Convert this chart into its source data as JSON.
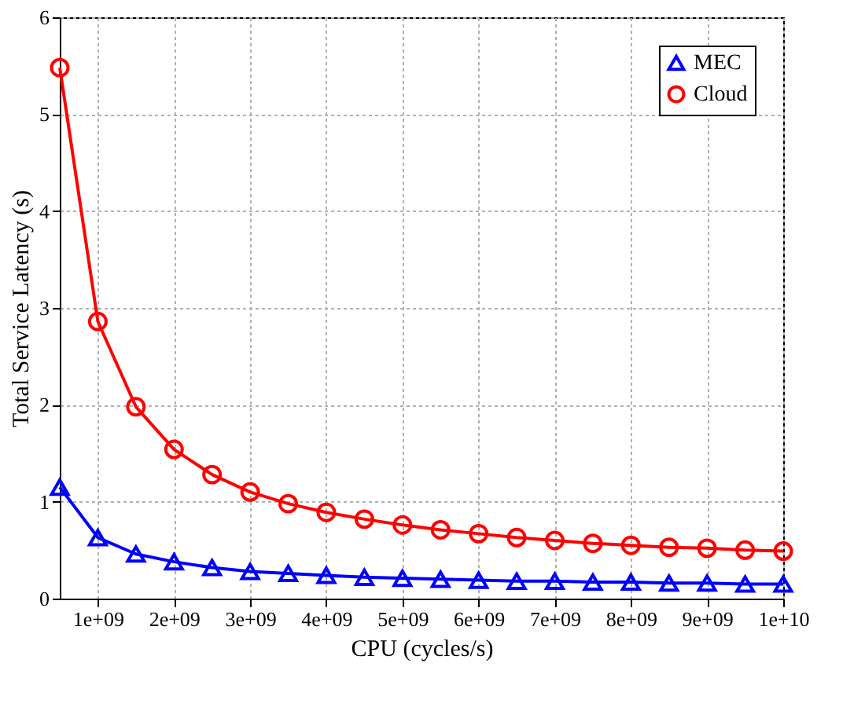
{
  "chart_data": {
    "type": "line",
    "xlabel": "CPU (cycles/s)",
    "ylabel": "Total Service Latency (s)",
    "x": [
      500000000,
      1000000000,
      1500000000,
      2000000000,
      2500000000,
      3000000000,
      3500000000,
      4000000000,
      4500000000,
      5000000000,
      5500000000,
      6000000000,
      6500000000,
      7000000000,
      7500000000,
      8000000000,
      8500000000,
      9000000000,
      9500000000,
      10000000000
    ],
    "series": [
      {
        "name": "MEC",
        "color": "#0000ff",
        "marker": "triangle",
        "values": [
          1.15,
          0.63,
          0.46,
          0.38,
          0.32,
          0.28,
          0.26,
          0.24,
          0.22,
          0.21,
          0.2,
          0.19,
          0.18,
          0.18,
          0.17,
          0.17,
          0.16,
          0.16,
          0.15,
          0.15
        ]
      },
      {
        "name": "Cloud",
        "color": "#ff0000",
        "marker": "circle",
        "values": [
          5.48,
          2.86,
          1.98,
          1.54,
          1.28,
          1.1,
          0.98,
          0.89,
          0.82,
          0.76,
          0.71,
          0.67,
          0.63,
          0.6,
          0.57,
          0.55,
          0.53,
          0.52,
          0.5,
          0.49
        ]
      }
    ],
    "xlim": [
      500000000,
      10000000000
    ],
    "xticks": [
      {
        "value": 1000000000,
        "label": "1e+09"
      },
      {
        "value": 2000000000,
        "label": "2e+09"
      },
      {
        "value": 3000000000,
        "label": "3e+09"
      },
      {
        "value": 4000000000,
        "label": "4e+09"
      },
      {
        "value": 5000000000,
        "label": "5e+09"
      },
      {
        "value": 6000000000,
        "label": "6e+09"
      },
      {
        "value": 7000000000,
        "label": "7e+09"
      },
      {
        "value": 8000000000,
        "label": "8e+09"
      },
      {
        "value": 9000000000,
        "label": "9e+09"
      },
      {
        "value": 10000000000,
        "label": "1e+10"
      }
    ],
    "ylim": [
      0,
      6
    ],
    "yticks": [
      0,
      1,
      2,
      3,
      4,
      5,
      6
    ],
    "grid": true,
    "legend": "top right",
    "line_style": "solid"
  }
}
